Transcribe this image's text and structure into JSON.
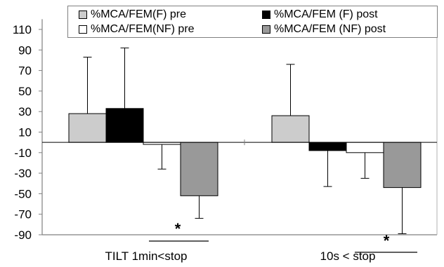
{
  "chart_data": {
    "type": "bar",
    "categories": [
      "TILT 1min<stop",
      "10s < stop"
    ],
    "series": [
      {
        "name": "%MCA/FEM(F) pre",
        "color": "#cccccc",
        "values": [
          28,
          26
        ],
        "error_upper": [
          55,
          50
        ]
      },
      {
        "name": "%MCA/FEM (F) post",
        "color": "#000000",
        "values": [
          33,
          -8
        ],
        "error_upper": [
          59,
          null
        ],
        "error_lower": [
          null,
          -35
        ]
      },
      {
        "name": "%MCA/FEM(NF) pre",
        "color": "#ffffff",
        "values": [
          -2,
          -10
        ],
        "error_lower": [
          -24,
          -25
        ]
      },
      {
        "name": "%MCA/FEM (NF) post",
        "color": "#999999",
        "values": [
          -52,
          -44
        ],
        "error_lower": [
          -22,
          -45
        ]
      }
    ],
    "yticks": [
      110,
      90,
      70,
      50,
      30,
      10,
      -10,
      -30,
      -50,
      -70,
      -90
    ],
    "ylim": [
      -90,
      120
    ],
    "annotations": [
      {
        "text": "*",
        "category": "TILT 1min<stop"
      },
      {
        "text": "*",
        "category": "10s < stop"
      }
    ],
    "legend_position": "top",
    "grid": false
  }
}
